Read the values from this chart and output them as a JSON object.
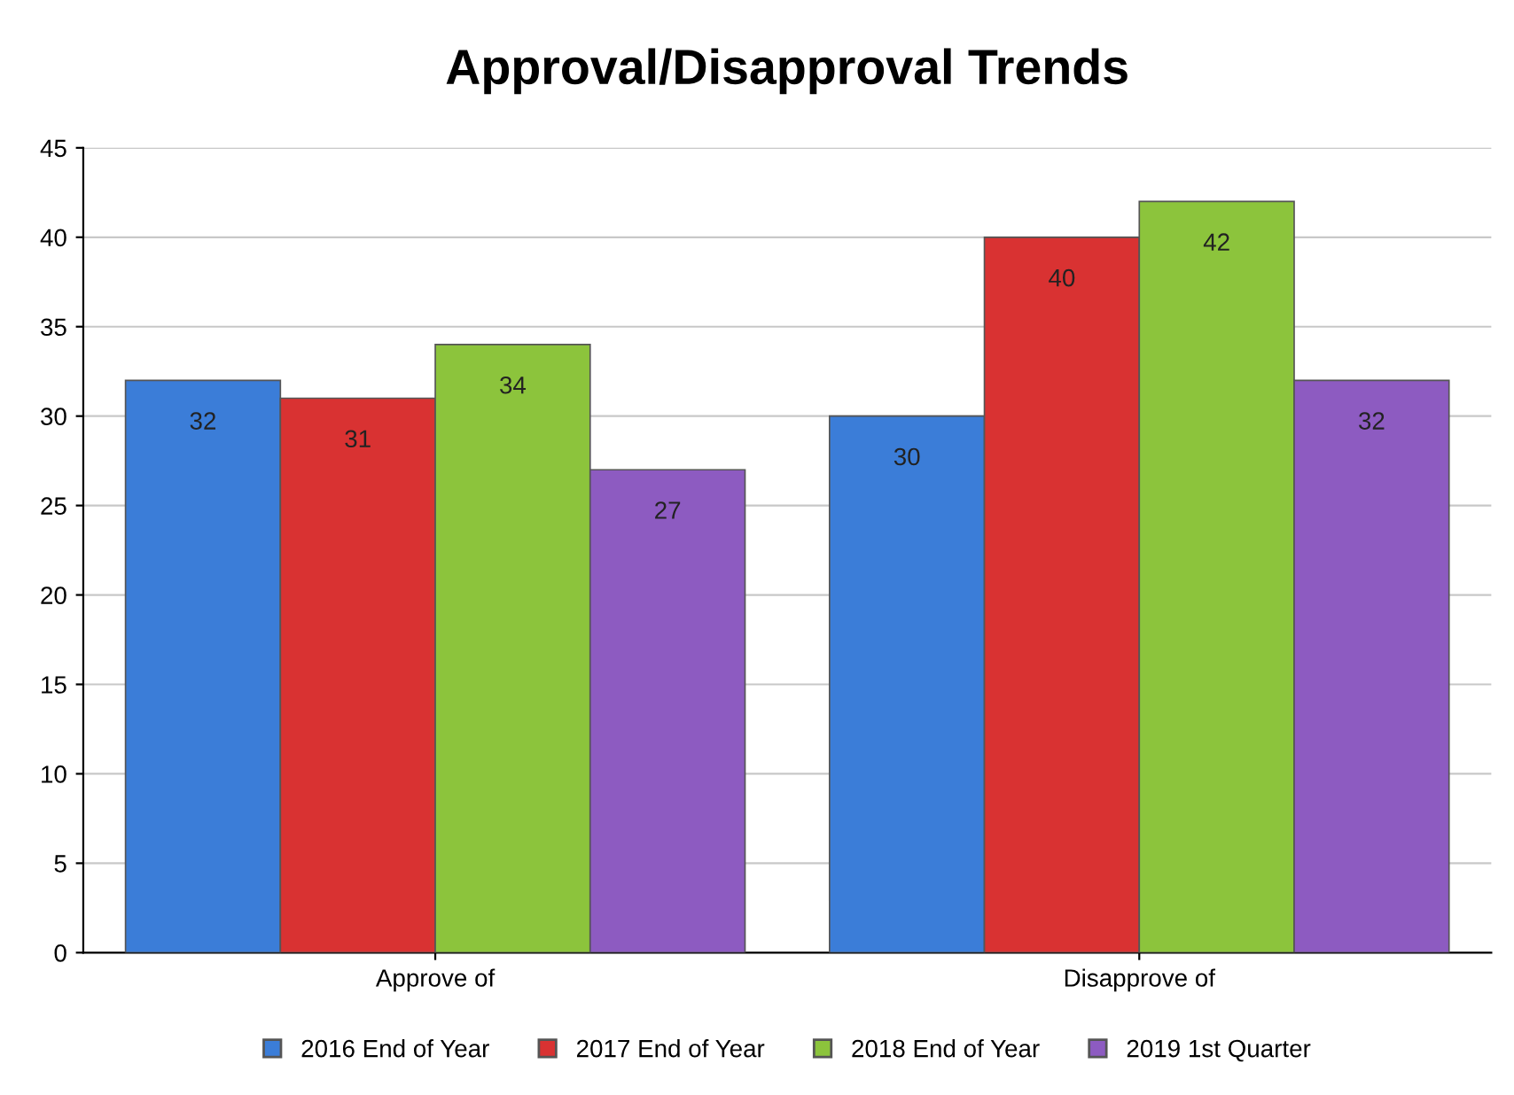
{
  "chart_data": {
    "type": "bar",
    "title": "Approval/Disapproval Trends",
    "categories": [
      "Approve of",
      "Disapprove of"
    ],
    "series": [
      {
        "name": "2016 End of Year",
        "color": "#3b7dd8",
        "values": [
          32,
          30
        ]
      },
      {
        "name": "2017 End of Year",
        "color": "#d93232",
        "values": [
          31,
          40
        ]
      },
      {
        "name": "2018 End of Year",
        "color": "#8cc43c",
        "values": [
          34,
          42
        ]
      },
      {
        "name": "2019 1st Quarter",
        "color": "#8d5bc1",
        "values": [
          27,
          32
        ]
      }
    ],
    "ylim": [
      0,
      45
    ],
    "yticks": [
      0,
      5,
      10,
      15,
      20,
      25,
      30,
      35,
      40,
      45
    ],
    "grid": "y",
    "legend": "bottom",
    "data_labels": true
  }
}
